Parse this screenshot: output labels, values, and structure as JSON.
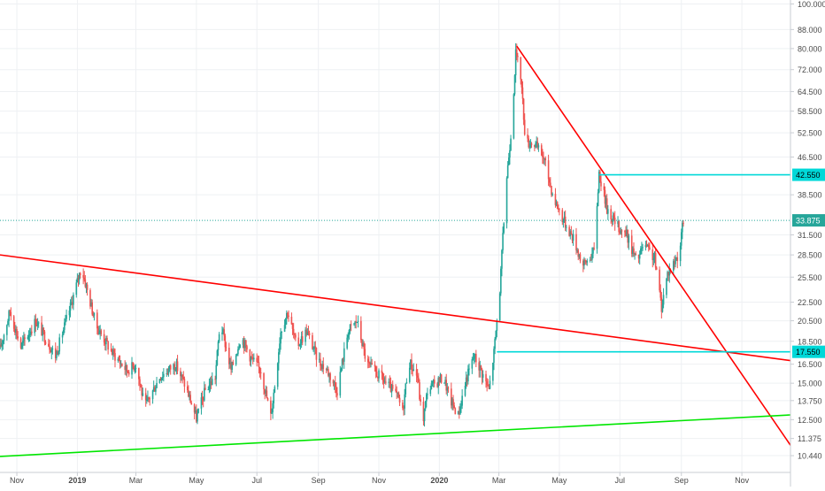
{
  "chart_data": {
    "type": "candlestick",
    "scale": "log",
    "grid": true,
    "y_axis_position": "right",
    "ylim": [
      9.6,
      102
    ],
    "x_range": [
      "2018-10-15",
      "2020-12-20"
    ],
    "y_ticks": [
      {
        "value": 100.0,
        "label": "100.000"
      },
      {
        "value": 88.0,
        "label": "88.000"
      },
      {
        "value": 80.0,
        "label": "80.000"
      },
      {
        "value": 72.0,
        "label": "72.000"
      },
      {
        "value": 64.5,
        "label": "64.500"
      },
      {
        "value": 58.5,
        "label": "58.500"
      },
      {
        "value": 52.5,
        "label": "52.500"
      },
      {
        "value": 46.5,
        "label": "46.500"
      },
      {
        "value": 38.5,
        "label": "38.500"
      },
      {
        "value": 31.5,
        "label": "31.500"
      },
      {
        "value": 28.5,
        "label": "28.500"
      },
      {
        "value": 25.5,
        "label": "25.500"
      },
      {
        "value": 22.5,
        "label": "22.500"
      },
      {
        "value": 20.5,
        "label": "20.500"
      },
      {
        "value": 18.5,
        "label": "18.500"
      },
      {
        "value": 16.5,
        "label": "16.500"
      },
      {
        "value": 15.0,
        "label": "15.000"
      },
      {
        "value": 13.75,
        "label": "13.750"
      },
      {
        "value": 12.5,
        "label": "12.500"
      },
      {
        "value": 11.375,
        "label": "11.375"
      },
      {
        "value": 10.44,
        "label": "10.440"
      }
    ],
    "x_ticks": [
      {
        "date": "2018-11-01",
        "label": "Nov",
        "bold": false
      },
      {
        "date": "2019-01-01",
        "label": "2019",
        "bold": true
      },
      {
        "date": "2019-03-01",
        "label": "Mar",
        "bold": false
      },
      {
        "date": "2019-05-01",
        "label": "May",
        "bold": false
      },
      {
        "date": "2019-07-01",
        "label": "Jul",
        "bold": false
      },
      {
        "date": "2019-09-01",
        "label": "Sep",
        "bold": false
      },
      {
        "date": "2019-11-01",
        "label": "Nov",
        "bold": false
      },
      {
        "date": "2020-01-01",
        "label": "2020",
        "bold": true
      },
      {
        "date": "2020-03-01",
        "label": "Mar",
        "bold": false
      },
      {
        "date": "2020-05-01",
        "label": "May",
        "bold": false
      },
      {
        "date": "2020-07-01",
        "label": "Jul",
        "bold": false
      },
      {
        "date": "2020-09-01",
        "label": "Sep",
        "bold": false
      },
      {
        "date": "2020-11-01",
        "label": "Nov",
        "bold": false
      }
    ],
    "last_price": {
      "value": 33.875,
      "label": "33.875",
      "color": "#26a69a"
    },
    "price_path": [
      [
        "2018-10-15",
        17.8
      ],
      [
        "2018-10-25",
        21.5
      ],
      [
        "2018-11-05",
        18.0
      ],
      [
        "2018-11-20",
        20.5
      ],
      [
        "2018-12-10",
        17.2
      ],
      [
        "2018-12-25",
        22.0
      ],
      [
        "2019-01-05",
        26.8
      ],
      [
        "2019-01-20",
        20.0
      ],
      [
        "2019-02-05",
        17.5
      ],
      [
        "2019-02-20",
        16.0
      ],
      [
        "2019-03-01",
        16.5
      ],
      [
        "2019-03-10",
        13.3
      ],
      [
        "2019-03-25",
        15.5
      ],
      [
        "2019-04-10",
        16.5
      ],
      [
        "2019-04-20",
        14.8
      ],
      [
        "2019-05-01",
        12.6
      ],
      [
        "2019-05-10",
        14.5
      ],
      [
        "2019-05-20",
        15.5
      ],
      [
        "2019-05-25",
        20.5
      ],
      [
        "2019-06-05",
        16.0
      ],
      [
        "2019-06-15",
        19.0
      ],
      [
        "2019-06-25",
        17.0
      ],
      [
        "2019-07-05",
        16.0
      ],
      [
        "2019-07-15",
        12.7
      ],
      [
        "2019-07-20",
        15.5
      ],
      [
        "2019-07-25",
        19.5
      ],
      [
        "2019-08-01",
        21.5
      ],
      [
        "2019-08-10",
        18.0
      ],
      [
        "2019-08-20",
        19.5
      ],
      [
        "2019-09-01",
        16.8
      ],
      [
        "2019-09-10",
        16.0
      ],
      [
        "2019-09-20",
        14.5
      ],
      [
        "2019-10-01",
        19.5
      ],
      [
        "2019-10-10",
        20.5
      ],
      [
        "2019-10-20",
        16.5
      ],
      [
        "2019-11-05",
        15.3
      ],
      [
        "2019-11-20",
        14.0
      ],
      [
        "2019-11-25",
        13.0
      ],
      [
        "2019-12-01",
        16.8
      ],
      [
        "2019-12-10",
        15.5
      ],
      [
        "2019-12-15",
        12.2
      ],
      [
        "2019-12-20",
        14.5
      ],
      [
        "2019-12-28",
        15.0
      ],
      [
        "2020-01-05",
        15.5
      ],
      [
        "2020-01-12",
        13.8
      ],
      [
        "2020-01-20",
        12.8
      ],
      [
        "2020-01-28",
        15.3
      ],
      [
        "2020-02-05",
        17.2
      ],
      [
        "2020-02-12",
        16.0
      ],
      [
        "2020-02-20",
        14.5
      ],
      [
        "2020-02-25",
        17.5
      ],
      [
        "2020-03-02",
        24.0
      ],
      [
        "2020-03-08",
        40.0
      ],
      [
        "2020-03-14",
        55.0
      ],
      [
        "2020-03-18",
        78.0
      ],
      [
        "2020-03-23",
        70.0
      ],
      [
        "2020-03-28",
        50.0
      ],
      [
        "2020-04-05",
        50.0
      ],
      [
        "2020-04-15",
        46.5
      ],
      [
        "2020-04-25",
        38.0
      ],
      [
        "2020-05-05",
        34.0
      ],
      [
        "2020-05-15",
        31.0
      ],
      [
        "2020-05-25",
        27.0
      ],
      [
        "2020-06-05",
        29.0
      ],
      [
        "2020-06-10",
        43.0
      ],
      [
        "2020-06-18",
        36.0
      ],
      [
        "2020-06-28",
        33.0
      ],
      [
        "2020-07-08",
        31.5
      ],
      [
        "2020-07-18",
        27.5
      ],
      [
        "2020-07-25",
        30.0
      ],
      [
        "2020-08-05",
        28.0
      ],
      [
        "2020-08-12",
        22.0
      ],
      [
        "2020-08-18",
        26.0
      ],
      [
        "2020-08-25",
        27.5
      ],
      [
        "2020-08-30",
        29.0
      ],
      [
        "2020-09-03",
        33.9
      ]
    ],
    "trendlines": [
      {
        "name": "",
        "color": "#ff0000",
        "from": [
          "2018-10-15",
          28.5
        ],
        "to": [
          "2020-12-20",
          16.8
        ]
      },
      {
        "name": "",
        "color": "#ff0000",
        "from": [
          "2020-03-19",
          81.0
        ],
        "to": [
          "2020-12-20",
          11.0
        ]
      },
      {
        "name": "",
        "color": "#00e600",
        "from": [
          "2018-10-15",
          10.4
        ],
        "to": [
          "2020-12-20",
          12.8
        ]
      },
      {
        "name": "",
        "color": "#00d8d8",
        "from": [
          "2020-06-10",
          42.55
        ],
        "to": [
          "2020-12-20",
          42.55
        ],
        "label": "42.550"
      },
      {
        "name": "",
        "color": "#00d8d8",
        "from": [
          "2020-02-28",
          17.55
        ],
        "to": [
          "2020-12-20",
          17.55
        ],
        "label": "17.550"
      }
    ],
    "colors": {
      "up": "#26a69a",
      "down": "#ef5350",
      "grid": "#eef0f3",
      "axis_text": "#4a4a4a"
    }
  }
}
